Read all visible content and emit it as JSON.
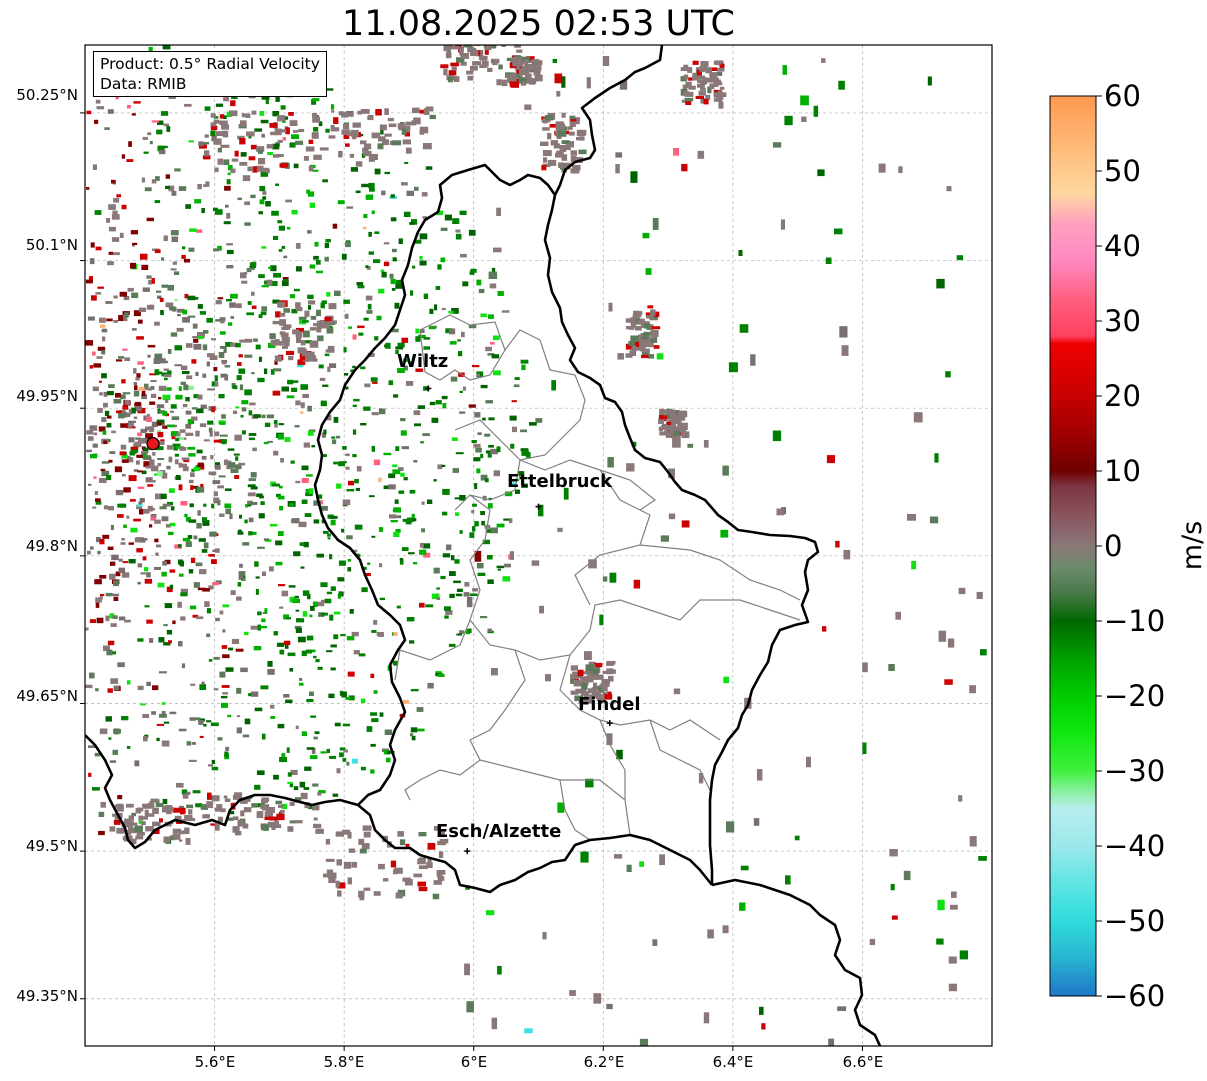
{
  "title": "11.08.2025 02:53 UTC",
  "info_box": {
    "product": "Product: 0.5° Radial Velocity",
    "source": "Data: RMIB"
  },
  "axes": {
    "lat_labels": [
      "50.25°N",
      "50.1°N",
      "49.95°N",
      "49.8°N",
      "49.65°N",
      "49.5°N",
      "49.35°N"
    ],
    "lon_labels": [
      "5.6°E",
      "5.8°E",
      "6°E",
      "6.2°E",
      "6.4°E",
      "6.6°E"
    ],
    "lat_values": [
      50.25,
      50.1,
      49.95,
      49.8,
      49.65,
      49.5,
      49.35
    ],
    "lon_values": [
      5.6,
      5.8,
      6.0,
      6.2,
      6.4,
      6.6
    ]
  },
  "cities": [
    {
      "name": "Wiltz",
      "lon": 5.93,
      "lat": 49.97
    },
    {
      "name": "Ettelbruck",
      "lon": 6.1,
      "lat": 49.85
    },
    {
      "name": "Findel",
      "lon": 6.21,
      "lat": 49.63
    },
    {
      "name": "Esch/Alzette",
      "lon": 5.99,
      "lat": 49.5
    }
  ],
  "radar": {
    "lon": 5.505,
    "lat": 49.914,
    "marker_color": "#e8161b"
  },
  "colorbar": {
    "unit": "m/s",
    "ticks": [
      "60",
      "50",
      "40",
      "30",
      "20",
      "10",
      "0",
      "−10",
      "−20",
      "−30",
      "−40",
      "−50",
      "−60"
    ],
    "tick_values": [
      60,
      50,
      40,
      30,
      20,
      10,
      0,
      -10,
      -20,
      -30,
      -40,
      -50,
      -60
    ],
    "min": -60,
    "max": 60,
    "stops": [
      {
        "v": -60,
        "c": "#1f77c8"
      },
      {
        "v": -55,
        "c": "#28b4d0"
      },
      {
        "v": -50,
        "c": "#30dcdc"
      },
      {
        "v": -45,
        "c": "#60e4e4"
      },
      {
        "v": -40,
        "c": "#9ae8ea"
      },
      {
        "v": -35,
        "c": "#b8eef0"
      },
      {
        "v": -33,
        "c": "#90f0a8"
      },
      {
        "v": -30,
        "c": "#40f040"
      },
      {
        "v": -25,
        "c": "#10e810"
      },
      {
        "v": -20,
        "c": "#00cc00"
      },
      {
        "v": -15,
        "c": "#00a000"
      },
      {
        "v": -10,
        "c": "#006800"
      },
      {
        "v": -6,
        "c": "#4e7a4e"
      },
      {
        "v": -3,
        "c": "#6a8a6a"
      },
      {
        "v": 0,
        "c": "#8a7878"
      },
      {
        "v": 4,
        "c": "#8a5560"
      },
      {
        "v": 8,
        "c": "#7a3540"
      },
      {
        "v": 10,
        "c": "#700000"
      },
      {
        "v": 15,
        "c": "#a00000"
      },
      {
        "v": 20,
        "c": "#c80000"
      },
      {
        "v": 27,
        "c": "#f00000"
      },
      {
        "v": 28,
        "c": "#ff4060"
      },
      {
        "v": 33,
        "c": "#ff6080"
      },
      {
        "v": 38,
        "c": "#ff88c0"
      },
      {
        "v": 43,
        "c": "#ffa0c0"
      },
      {
        "v": 47,
        "c": "#ffd8a0"
      },
      {
        "v": 52,
        "c": "#ffc080"
      },
      {
        "v": 60,
        "c": "#ff9850"
      }
    ]
  },
  "colors": {
    "border": "#000000",
    "canton": "#808080",
    "grid": "#b0b0b0",
    "velocity_palette": [
      "#8a7878",
      "#7a6f6f",
      "#008000",
      "#006400",
      "#00b000",
      "#10e010",
      "#5a7a5a",
      "#cc0000",
      "#800000",
      "#ff6080",
      "#ffb070",
      "#40e0e0",
      "#90f0a0"
    ]
  }
}
